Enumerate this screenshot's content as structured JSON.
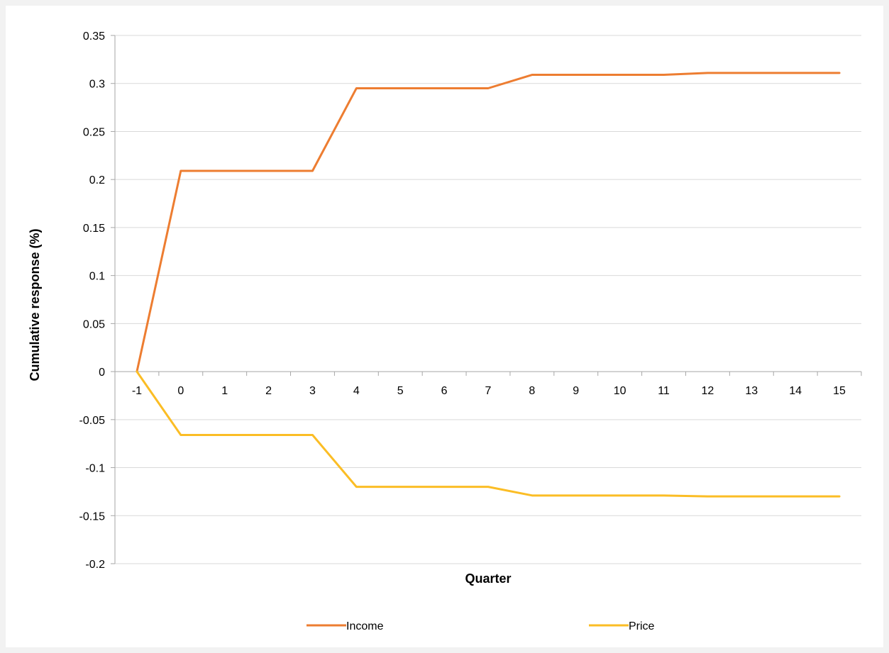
{
  "chart_data": {
    "type": "line",
    "title": "",
    "xlabel": "Quarter",
    "ylabel": "Cumulative response (%)",
    "x": [
      "-1",
      "0",
      "1",
      "2",
      "3",
      "4",
      "5",
      "6",
      "7",
      "8",
      "9",
      "10",
      "11",
      "12",
      "13",
      "14",
      "15"
    ],
    "ylim": [
      -0.2,
      0.35
    ],
    "yticks": [
      "-0.2",
      "-0.15",
      "-0.1",
      "-0.05",
      "0",
      "0.05",
      "0.1",
      "0.15",
      "0.2",
      "0.25",
      "0.3",
      "0.35"
    ],
    "grid": true,
    "legend": "bottom",
    "series": [
      {
        "name": "Income",
        "color": "#ed7d31",
        "values": [
          0,
          0.209,
          0.209,
          0.209,
          0.209,
          0.295,
          0.295,
          0.295,
          0.295,
          0.309,
          0.309,
          0.309,
          0.309,
          0.311,
          0.311,
          0.311,
          0.311
        ]
      },
      {
        "name": "Price",
        "color": "#fbbd25",
        "values": [
          0,
          -0.066,
          -0.066,
          -0.066,
          -0.066,
          -0.12,
          -0.12,
          -0.12,
          -0.12,
          -0.129,
          -0.129,
          -0.129,
          -0.129,
          -0.13,
          -0.13,
          -0.13,
          -0.13
        ]
      }
    ]
  }
}
